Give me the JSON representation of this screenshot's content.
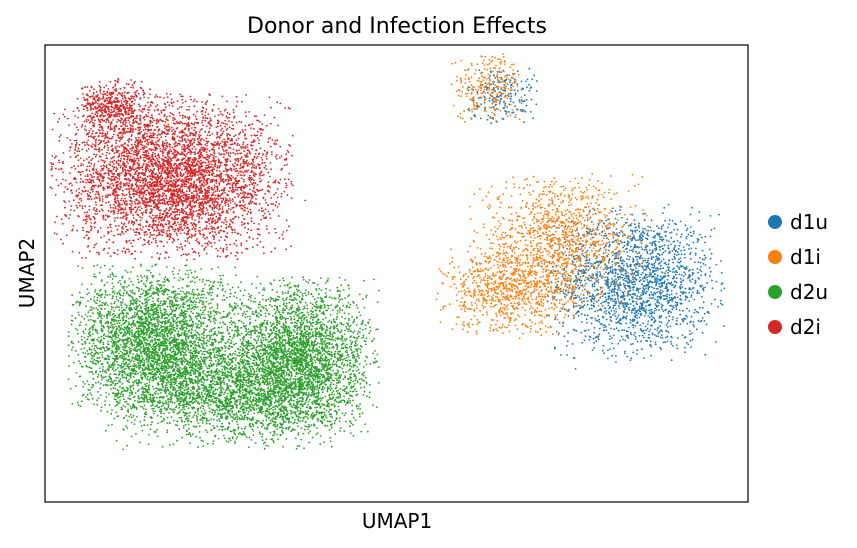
{
  "chart_data": {
    "type": "scatter",
    "title": "Donor and Infection Effects",
    "xlabel": "UMAP1",
    "ylabel": "UMAP2",
    "ticks_shown": false,
    "grid": false,
    "legend_placement": "right",
    "xlim": [
      0,
      10
    ],
    "ylim": [
      0,
      10
    ],
    "series": [
      {
        "name": "d1u",
        "color": "#1f77b4",
        "clusters": [
          {
            "cx": 8.4,
            "cy": 4.8,
            "sx": 0.55,
            "sy": 0.75,
            "count": 1900
          },
          {
            "cx": 6.5,
            "cy": 8.9,
            "sx": 0.25,
            "sy": 0.3,
            "count": 200
          }
        ]
      },
      {
        "name": "d1i",
        "color": "#ff7f0e",
        "clusters": [
          {
            "cx": 7.3,
            "cy": 5.7,
            "sx": 0.55,
            "sy": 0.65,
            "count": 1200
          },
          {
            "cx": 6.6,
            "cy": 4.6,
            "sx": 0.45,
            "sy": 0.45,
            "count": 800
          },
          {
            "cx": 6.3,
            "cy": 9.1,
            "sx": 0.25,
            "sy": 0.35,
            "count": 250
          }
        ]
      },
      {
        "name": "d2u",
        "color": "#2ca02c",
        "clusters": [
          {
            "cx": 1.6,
            "cy": 3.5,
            "sx": 0.55,
            "sy": 0.75,
            "count": 3500
          },
          {
            "cx": 3.6,
            "cy": 3.2,
            "sx": 0.5,
            "sy": 0.75,
            "count": 3000
          },
          {
            "cx": 2.7,
            "cy": 2.3,
            "sx": 0.8,
            "sy": 0.5,
            "count": 2000
          }
        ]
      },
      {
        "name": "d2i",
        "color": "#d62728",
        "clusters": [
          {
            "cx": 1.8,
            "cy": 7.1,
            "sx": 0.75,
            "sy": 0.8,
            "count": 4500
          },
          {
            "cx": 1.0,
            "cy": 8.6,
            "sx": 0.25,
            "sy": 0.3,
            "count": 500
          }
        ]
      }
    ]
  }
}
